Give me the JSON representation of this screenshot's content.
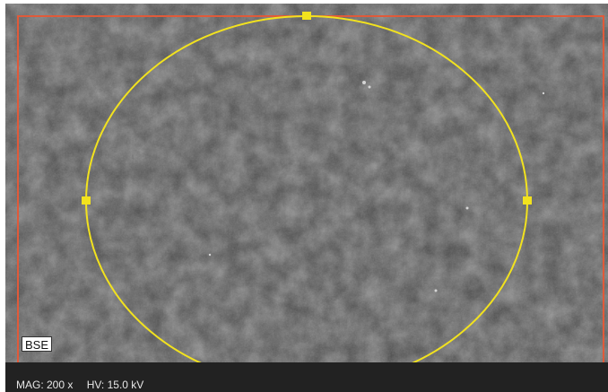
{
  "image": {
    "detector": "BSE",
    "background_color": "#4a4a4a"
  },
  "status": {
    "magnification": "MAG: 200 x",
    "voltage": "HV: 15.0 kV"
  },
  "roi": {
    "frame_color": "#e05a3a",
    "ellipse_color": "#f2e21e",
    "handle_color": "#f2e21e"
  }
}
